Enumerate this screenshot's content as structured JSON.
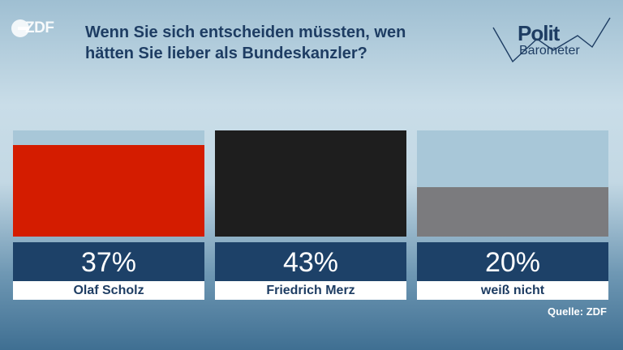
{
  "header": {
    "logo_text": "ZDF",
    "title_line1": "Wenn Sie sich entscheiden müssten, wen",
    "title_line2": "hätten Sie lieber als Bundeskanzler?",
    "brand_word1": "Polit",
    "brand_word2": "Barometer"
  },
  "source": "Quelle: ZDF",
  "chart_data": {
    "type": "bar",
    "categories": [
      "Olaf Scholz",
      "Friedrich Merz",
      "weiß nicht"
    ],
    "values": [
      37,
      43,
      20
    ],
    "value_labels": [
      "37%",
      "43%",
      "20%"
    ],
    "colors": [
      "#d41c00",
      "#1e1e1e",
      "#7b7b7e"
    ],
    "ylim": [
      0,
      43
    ],
    "unit": "%",
    "xlabel": "",
    "ylabel": ""
  }
}
